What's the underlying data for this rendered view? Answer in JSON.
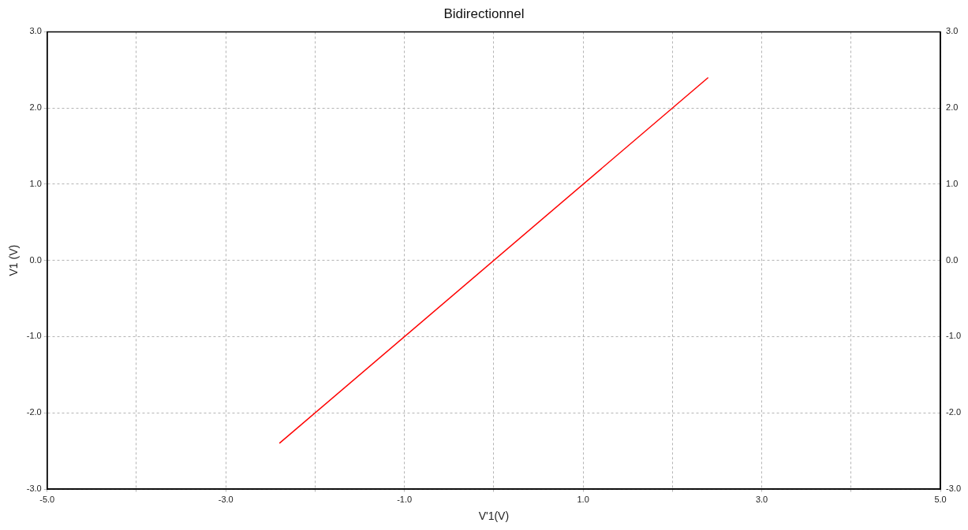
{
  "chart_data": {
    "type": "line",
    "title": "Bidirectionnel",
    "xlabel": "V'1(V)",
    "ylabel": "V1 (V)",
    "x": [
      -2.4,
      2.4
    ],
    "series": [
      {
        "color": "#ff0000",
        "values": [
          -2.4,
          2.4
        ]
      }
    ],
    "xlim": [
      -5,
      5
    ],
    "xticks": [
      {
        "value": -5,
        "label": "-5.0"
      },
      {
        "value": -4,
        "label": null
      },
      {
        "value": -3,
        "label": "-3.0"
      },
      {
        "value": -2,
        "label": null
      },
      {
        "value": -1,
        "label": "-1.0"
      },
      {
        "value": 0,
        "label": null
      },
      {
        "value": 1,
        "label": "1.0"
      },
      {
        "value": 2,
        "label": null
      },
      {
        "value": 3,
        "label": "3.0"
      },
      {
        "value": 4,
        "label": null
      },
      {
        "value": 5,
        "label": "5.0"
      }
    ],
    "ylim": [
      -3,
      3
    ],
    "yticks": [
      {
        "value": -3,
        "label": "-3.0"
      },
      {
        "value": -2,
        "label": "-2.0"
      },
      {
        "value": -1,
        "label": "-1.0"
      },
      {
        "value": 0,
        "label": "0.0"
      },
      {
        "value": 1,
        "label": "1.0"
      },
      {
        "value": 2,
        "label": "2.0"
      },
      {
        "value": 3,
        "label": "3.0"
      }
    ],
    "y2lim": [
      -3,
      3
    ],
    "y2ticks": [
      {
        "value": -3,
        "label": "-3.0"
      },
      {
        "value": -2,
        "label": "-2.0"
      },
      {
        "value": -1,
        "label": "-1.0"
      },
      {
        "value": 0,
        "label": "0.0"
      },
      {
        "value": 1,
        "label": "1.0"
      },
      {
        "value": 2,
        "label": "2.0"
      },
      {
        "value": 3,
        "label": "3.0"
      }
    ],
    "grid": true,
    "legend": false,
    "marker": "none",
    "line_style": "solid"
  }
}
